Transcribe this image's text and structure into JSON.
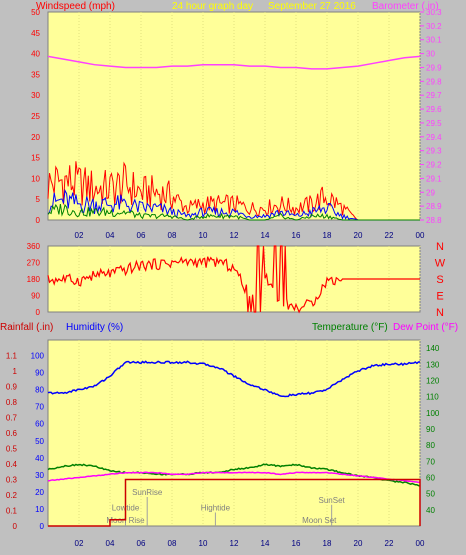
{
  "header": {
    "left_label": "Windspeed (mph)",
    "center_label": "24 hour graph day",
    "date_label": "September 27 2016",
    "right_label": "Barometer (.in)"
  },
  "colors": {
    "plot_bg": "#ffff99",
    "frame": "#c0c0c0",
    "windspeed_gust": "#ff0000",
    "windspeed_avg": "#0000ff",
    "windspeed_min": "#008000",
    "barometer": "#ff40ff",
    "direction": "#ff0000",
    "humidity": "#0000ff",
    "temperature": "#008000",
    "dewpoint": "#ff00ff",
    "rainfall": "#cc0000",
    "annotation": "#808080"
  },
  "chart_data": [
    {
      "type": "line",
      "name": "windspeed-barometer",
      "x_ticks": [
        "02",
        "04",
        "06",
        "08",
        "10",
        "12",
        "14",
        "16",
        "18",
        "20",
        "22",
        "00"
      ],
      "left_axis": {
        "title": "Windspeed (mph)",
        "ylim": [
          0,
          50
        ],
        "ticks": [
          "0",
          "5",
          "10",
          "15",
          "20",
          "25",
          "30",
          "35",
          "40",
          "45",
          "50"
        ]
      },
      "right_axis": {
        "title": "Barometer (.in)",
        "ylim": [
          28.8,
          30.3
        ],
        "ticks": [
          "28.8",
          "28.9",
          "29",
          "29.1",
          "29.2",
          "29.3",
          "29.4",
          "29.5",
          "29.6",
          "29.7",
          "29.8",
          "29.9",
          "30",
          "30.1",
          "30.2",
          "30.3"
        ]
      },
      "x": [
        0,
        1,
        2,
        3,
        4,
        5,
        6,
        7,
        8,
        9,
        10,
        11,
        12,
        13,
        14,
        15,
        16,
        17,
        18,
        19,
        20,
        21,
        22,
        23,
        24
      ],
      "series": [
        {
          "axis": "right",
          "values": [
            29.98,
            29.96,
            29.94,
            29.92,
            29.91,
            29.9,
            29.9,
            29.9,
            29.91,
            29.91,
            29.92,
            29.92,
            29.92,
            29.91,
            29.91,
            29.9,
            29.9,
            29.89,
            29.89,
            29.9,
            29.91,
            29.93,
            29.95,
            29.97,
            29.98
          ]
        },
        {
          "axis": "left",
          "values": [
            9,
            10,
            9,
            8,
            8,
            9,
            7,
            7,
            6,
            3,
            4,
            4,
            4,
            3,
            3,
            4,
            3,
            4,
            6,
            3,
            0,
            0,
            0,
            0,
            0
          ]
        },
        {
          "axis": "left",
          "values": [
            4,
            5,
            4,
            4,
            4,
            4,
            3,
            3,
            2,
            1,
            2,
            2,
            2,
            1,
            1,
            2,
            1,
            2,
            3,
            1,
            0,
            0,
            0,
            0,
            0
          ]
        },
        {
          "axis": "left",
          "values": [
            2,
            3,
            2,
            2,
            2,
            2,
            1,
            1,
            1,
            0,
            1,
            1,
            1,
            0,
            0,
            1,
            0,
            1,
            1,
            0,
            0,
            0,
            0,
            0,
            0
          ]
        }
      ]
    },
    {
      "type": "line",
      "name": "wind-direction",
      "left_axis": {
        "ylim": [
          0,
          360
        ],
        "ticks": [
          "0",
          "90",
          "180",
          "270",
          "360"
        ]
      },
      "right_axis": {
        "ticks": [
          "N",
          "W",
          "S",
          "E",
          "N"
        ]
      },
      "x": [
        0,
        1,
        2,
        3,
        4,
        5,
        6,
        7,
        8,
        9,
        10,
        11,
        12,
        13,
        14,
        15,
        16,
        17,
        18,
        19,
        20,
        21,
        22,
        23,
        24
      ],
      "values": [
        175,
        180,
        170,
        200,
        210,
        230,
        255,
        260,
        270,
        275,
        270,
        275,
        240,
        90,
        200,
        60,
        20,
        45,
        170,
        180,
        180,
        180,
        180,
        180,
        180
      ]
    },
    {
      "type": "line",
      "name": "temp-humidity-rain",
      "x_ticks": [
        "02",
        "04",
        "06",
        "08",
        "10",
        "12",
        "14",
        "16",
        "18",
        "20",
        "22",
        "00"
      ],
      "left_axis": {
        "ylim": [
          0,
          1.2
        ],
        "ticks": [
          "0",
          "0.1",
          "0.2",
          "0.3",
          "0.4",
          "0.5",
          "0.6",
          "0.7",
          "0.8",
          "0.9",
          "1",
          "1.1"
        ]
      },
      "left_axis_2": {
        "ylim": [
          0,
          100
        ],
        "ticks": [
          "0",
          "10",
          "20",
          "30",
          "40",
          "50",
          "60",
          "70",
          "80",
          "90",
          "100"
        ]
      },
      "right_axis": {
        "ylim": [
          30,
          145
        ],
        "ticks": [
          "40",
          "50",
          "60",
          "70",
          "80",
          "90",
          "100",
          "110",
          "120",
          "130",
          "140"
        ]
      },
      "titles": {
        "rainfall": "Rainfall (.in)",
        "humidity": "Humidity (%)",
        "temperature": "Temperature (°F)",
        "dewpoint": "Dew Point (°F)"
      },
      "x": [
        0,
        1,
        2,
        3,
        4,
        5,
        6,
        7,
        8,
        9,
        10,
        11,
        12,
        13,
        14,
        15,
        16,
        17,
        18,
        19,
        20,
        21,
        22,
        23,
        24
      ],
      "humidity": [
        78,
        78,
        80,
        82,
        88,
        96,
        96,
        96,
        96,
        96,
        95,
        93,
        88,
        83,
        80,
        76,
        77,
        78,
        80,
        86,
        91,
        94,
        95,
        95,
        96
      ],
      "temperature": [
        65,
        67,
        68,
        67,
        64,
        63,
        63,
        62,
        62,
        62,
        63,
        63,
        65,
        66,
        68,
        67,
        68,
        66,
        65,
        63,
        61,
        60,
        58,
        57,
        55
      ],
      "dewpoint": [
        58,
        59,
        60,
        61,
        62,
        63,
        63,
        63,
        62,
        62,
        63,
        63,
        63,
        63,
        63,
        62,
        63,
        63,
        63,
        62,
        61,
        60,
        59,
        58,
        57
      ],
      "rainfall": [
        0,
        0,
        0,
        0,
        0.04,
        0.3,
        0.3,
        0.3,
        0.3,
        0.3,
        0.3,
        0.3,
        0.3,
        0.3,
        0.3,
        0.3,
        0.3,
        0.3,
        0.3,
        0.3,
        0.3,
        0.3,
        0.3,
        0.3,
        0.3
      ],
      "annotations": [
        {
          "label": "SunRise",
          "hour": 6.4,
          "value": 0.2
        },
        {
          "label": "Lowtide",
          "hour": 5.0,
          "value": 0.1
        },
        {
          "label": "Moon Rise",
          "hour": 5.0,
          "value": 0.02
        },
        {
          "label": "Hightide",
          "hour": 10.8,
          "value": 0.1
        },
        {
          "label": "SunSet",
          "hour": 18.3,
          "value": 0.15
        },
        {
          "label": "Moon Set",
          "hour": 17.5,
          "value": 0.02
        }
      ]
    }
  ]
}
